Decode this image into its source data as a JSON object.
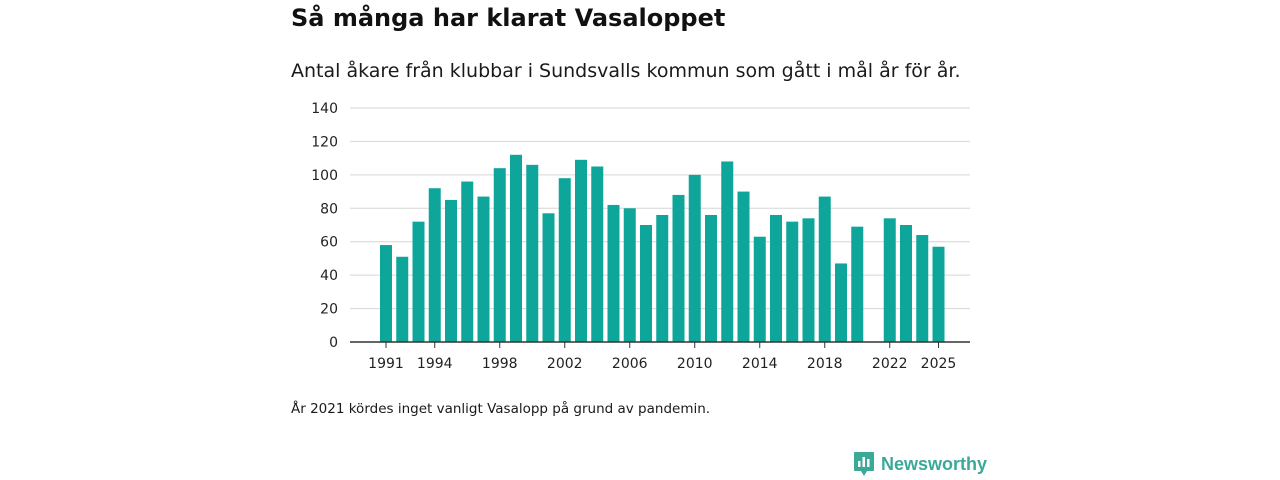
{
  "chart_data": {
    "type": "bar",
    "title": "Så många har klarat Vasaloppet",
    "subtitle": "Antal åkare från klubbar i Sundsvalls kommun som gått i mål år för år.",
    "note": "År 2021 kördes inget vanligt Vasalopp på grund av pandemin.",
    "xlabel": "",
    "ylabel": "",
    "ylim": [
      0,
      140
    ],
    "yticks": [
      0,
      20,
      40,
      60,
      80,
      100,
      120,
      140
    ],
    "grid": true,
    "bar_color": "#0ea59a",
    "categories": [
      1991,
      1992,
      1993,
      1994,
      1995,
      1996,
      1997,
      1998,
      1999,
      2000,
      2001,
      2002,
      2003,
      2004,
      2005,
      2006,
      2007,
      2008,
      2009,
      2010,
      2011,
      2012,
      2013,
      2014,
      2015,
      2016,
      2017,
      2018,
      2019,
      2020,
      2021,
      2022,
      2023,
      2024,
      2025
    ],
    "values": [
      58,
      51,
      72,
      92,
      85,
      96,
      87,
      104,
      112,
      106,
      77,
      98,
      109,
      105,
      82,
      80,
      70,
      76,
      88,
      100,
      76,
      108,
      90,
      63,
      76,
      72,
      74,
      87,
      47,
      69,
      null,
      74,
      70,
      64,
      57
    ],
    "xtick_labels": [
      1991,
      1994,
      1998,
      2002,
      2006,
      2010,
      2014,
      2018,
      2022,
      2025
    ]
  },
  "brand": {
    "name": "Newsworthy",
    "color": "#3aaa97",
    "icon": "newsworthy-logo-icon"
  }
}
